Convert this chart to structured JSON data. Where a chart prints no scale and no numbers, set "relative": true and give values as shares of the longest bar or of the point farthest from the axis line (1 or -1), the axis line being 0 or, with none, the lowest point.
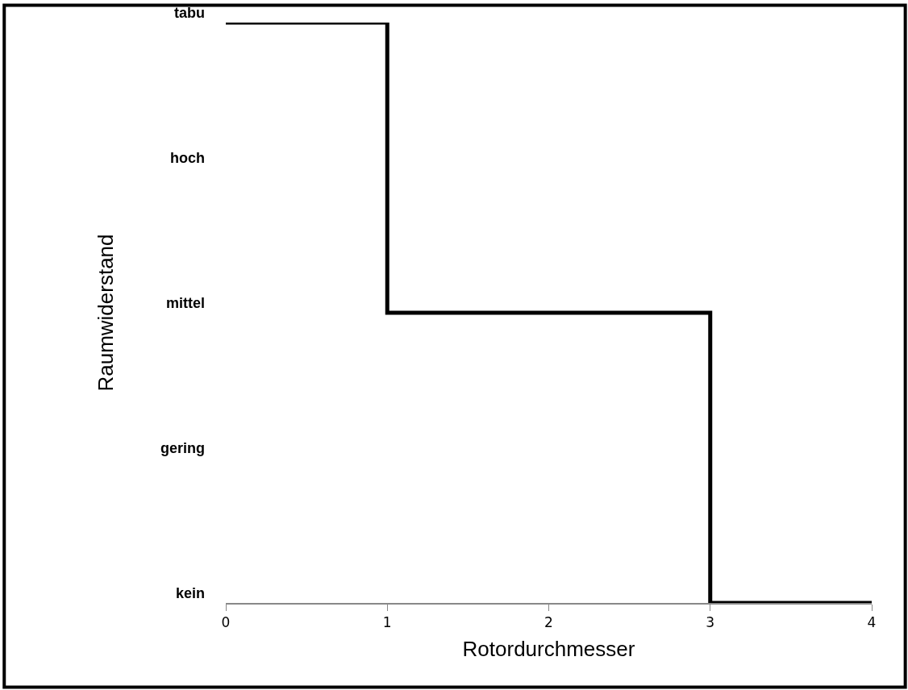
{
  "chart_data": {
    "type": "step",
    "xlabel": "Rotordurchmesser",
    "ylabel": "Raumwiderstand",
    "x": [
      0,
      1,
      3,
      4
    ],
    "relative": true,
    "series": [
      {
        "color": "#000000",
        "values": [
          1,
          0.5,
          0,
          0
        ]
      }
    ],
    "xlim": [
      0,
      4
    ],
    "xticks": [
      0,
      1,
      2,
      3,
      4
    ],
    "annotations": [
      "tabu",
      "hoch",
      "mittel",
      "gering",
      "kein"
    ],
    "marker": "none",
    "line_style": "solid"
  }
}
